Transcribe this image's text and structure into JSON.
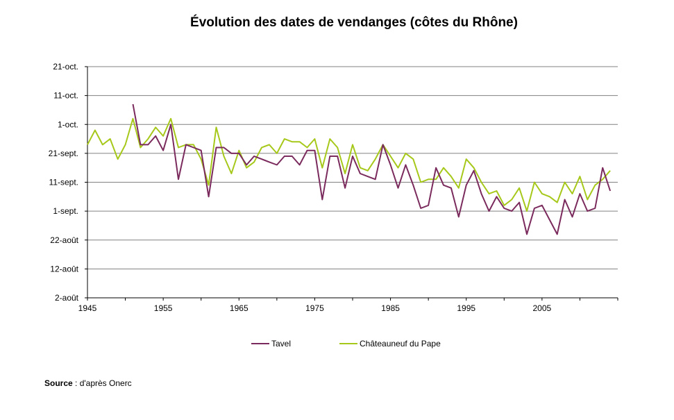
{
  "chart_data": {
    "type": "line",
    "title": "Évolution des dates de vendanges (côtes du Rhône)",
    "xlabel": "",
    "ylabel": "",
    "x_ticks": [
      1945,
      1955,
      1965,
      1975,
      1985,
      1995,
      2005
    ],
    "xlim": [
      1945,
      2015
    ],
    "y_ticks": [
      {
        "date": "2-août",
        "label": "2-août"
      },
      {
        "date": "12-août",
        "label": "12-août"
      },
      {
        "date": "22-août",
        "label": "22-août"
      },
      {
        "date": "1-sept.",
        "label": "1-sept."
      },
      {
        "date": "11-sept.",
        "label": "11-sept."
      },
      {
        "date": "21-sept.",
        "label": "21-sept."
      },
      {
        "date": "1-oct.",
        "label": "1-oct."
      },
      {
        "date": "11-oct.",
        "label": "11-oct."
      },
      {
        "date": "21-oct.",
        "label": "21-oct."
      }
    ],
    "ylim": [
      "2-août",
      "21-oct."
    ],
    "grid": "horizontal",
    "legend_position": "bottom",
    "series": [
      {
        "name": "Tavel",
        "color": "#7a2a5c",
        "x": [
          1951,
          1952,
          1953,
          1954,
          1955,
          1956,
          1957,
          1958,
          1959,
          1960,
          1961,
          1962,
          1963,
          1964,
          1965,
          1966,
          1967,
          1968,
          1969,
          1970,
          1971,
          1972,
          1973,
          1974,
          1975,
          1976,
          1977,
          1978,
          1979,
          1980,
          1981,
          1982,
          1983,
          1984,
          1985,
          1986,
          1987,
          1988,
          1989,
          1990,
          1991,
          1992,
          1993,
          1994,
          1995,
          1996,
          1997,
          1998,
          1999,
          2000,
          2001,
          2002,
          2003,
          2004,
          2005,
          2006,
          2007,
          2008,
          2009,
          2010,
          2011,
          2012,
          2013,
          2014
        ],
        "y": [
          "8-oct.",
          "24-sept.",
          "24-sept.",
          "27-sept.",
          "22-sept.",
          "1-oct.",
          "12-sept.",
          "24-sept.",
          "23-sept.",
          "22-sept.",
          "6-sept.",
          "23-sept.",
          "23-sept.",
          "21-sept.",
          "21-sept.",
          "17-sept.",
          "20-sept.",
          "19-sept.",
          "18-sept.",
          "17-sept.",
          "20-sept.",
          "20-sept.",
          "17-sept.",
          "22-sept.",
          "22-sept.",
          "5-sept.",
          "20-sept.",
          "20-sept.",
          "9-sept.",
          "20-sept.",
          "14-sept.",
          "13-sept.",
          "12-sept.",
          "24-sept.",
          "17-sept.",
          "9-sept.",
          "17-sept.",
          "10-sept.",
          "2-sept.",
          "3-sept.",
          "16-sept.",
          "10-sept.",
          "9-sept.",
          "30-août",
          "10-sept.",
          "15-sept.",
          "7-sept.",
          "1-sept.",
          "6-sept.",
          "2-sept.",
          "1-sept.",
          "4-sept.",
          "24-août",
          "2-sept.",
          "3-sept.",
          "29-août",
          "24-août",
          "5-sept.",
          "30-août",
          "7-sept.",
          "1-sept.",
          "2-sept.",
          "16-sept.",
          "8-sept."
        ]
      },
      {
        "name": "Châteauneuf du Pape",
        "color": "#a6c81a",
        "x": [
          1945,
          1946,
          1947,
          1948,
          1949,
          1950,
          1951,
          1952,
          1953,
          1954,
          1955,
          1956,
          1957,
          1958,
          1959,
          1960,
          1961,
          1962,
          1963,
          1964,
          1965,
          1966,
          1967,
          1968,
          1969,
          1970,
          1971,
          1972,
          1973,
          1974,
          1975,
          1976,
          1977,
          1978,
          1979,
          1980,
          1981,
          1982,
          1983,
          1984,
          1985,
          1986,
          1987,
          1988,
          1989,
          1990,
          1991,
          1992,
          1993,
          1994,
          1995,
          1996,
          1997,
          1998,
          1999,
          2000,
          2001,
          2002,
          2003,
          2004,
          2005,
          2006,
          2007,
          2008,
          2009,
          2010,
          2011,
          2012,
          2013,
          2014
        ],
        "y": [
          "24-sept.",
          "29-sept.",
          "24-sept.",
          "26-sept.",
          "19-sept.",
          "24-sept.",
          "3-oct.",
          "23-sept.",
          "26-sept.",
          "30-sept.",
          "27-sept.",
          "3-oct.",
          "23-sept.",
          "24-sept.",
          "24-sept.",
          "19-sept.",
          "10-sept.",
          "30-sept.",
          "20-sept.",
          "14-sept.",
          "22-sept.",
          "16-sept.",
          "18-sept.",
          "23-sept.",
          "24-sept.",
          "21-sept.",
          "26-sept.",
          "25-sept.",
          "25-sept.",
          "23-sept.",
          "26-sept.",
          "16-sept.",
          "26-sept.",
          "23-sept.",
          "14-sept.",
          "24-sept.",
          "16-sept.",
          "15-sept.",
          "19-sept.",
          "24-sept.",
          "20-sept.",
          "16-sept.",
          "21-sept.",
          "19-sept.",
          "11-sept.",
          "12-sept.",
          "12-sept.",
          "16-sept.",
          "13-sept.",
          "9-sept.",
          "19-sept.",
          "16-sept.",
          "11-sept.",
          "7-sept.",
          "8-sept.",
          "3-sept.",
          "5-sept.",
          "9-sept.",
          "1-sept.",
          "11-sept.",
          "7-sept.",
          "6-sept.",
          "4-sept.",
          "11-sept.",
          "7-sept.",
          "13-sept.",
          "5-sept.",
          "10-sept.",
          "12-sept.",
          "15-sept."
        ]
      }
    ],
    "source_label": "Source",
    "source_text": " : d'après Onerc"
  }
}
